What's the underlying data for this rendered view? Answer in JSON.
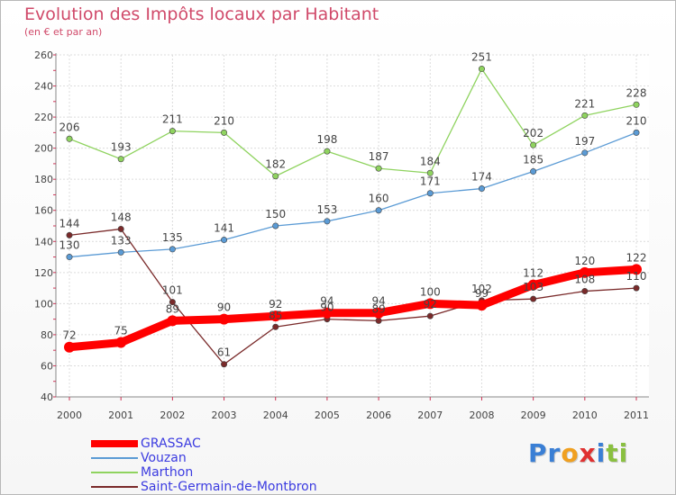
{
  "chart_data": {
    "type": "line",
    "title": "Evolution des Impôts locaux par Habitant",
    "subtitle": "(en € et par an)",
    "xlabel": "",
    "ylabel": "",
    "x": [
      "2000",
      "2001",
      "2002",
      "2003",
      "2004",
      "2005",
      "2006",
      "2007",
      "2008",
      "2009",
      "2010",
      "2011"
    ],
    "yticks": [
      "40",
      "60",
      "80",
      "100",
      "120",
      "140",
      "160",
      "180",
      "200",
      "220",
      "240",
      "260"
    ],
    "ylim": [
      40,
      260
    ],
    "grid": true,
    "legend_position": "bottom-left",
    "series": [
      {
        "name": "GRASSAC",
        "color": "#ff0000",
        "values": [
          72,
          75,
          89,
          90,
          92,
          94,
          94,
          100,
          99,
          112,
          120,
          122
        ]
      },
      {
        "name": "Vouzan",
        "color": "#5b9bd5",
        "values": [
          130,
          133,
          135,
          141,
          150,
          153,
          160,
          171,
          174,
          185,
          197,
          210
        ]
      },
      {
        "name": "Marthon",
        "color": "#8fd35f",
        "values": [
          206,
          193,
          211,
          210,
          182,
          198,
          187,
          184,
          251,
          202,
          221,
          228
        ]
      },
      {
        "name": "Saint-Germain-de-Montbron",
        "color": "#7a2a2a",
        "values": [
          144,
          148,
          101,
          61,
          85,
          90,
          89,
          92,
          102,
          103,
          108,
          110
        ]
      }
    ]
  },
  "logo": {
    "letters": [
      "P",
      "r",
      "o",
      "x",
      "i",
      "t",
      "i"
    ],
    "colors": [
      "#3a7fd5",
      "#3a7fd5",
      "#f0a020",
      "#e03030",
      "#3a7fd5",
      "#8ac040",
      "#8ac040"
    ]
  }
}
